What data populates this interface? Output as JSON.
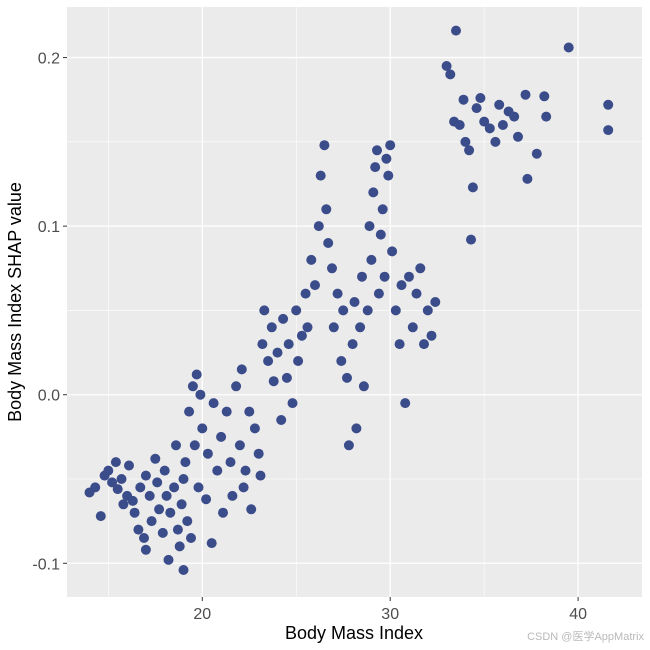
{
  "chart_data": {
    "type": "scatter",
    "title": "",
    "xlabel": "Body Mass Index",
    "ylabel": "Body Mass Index SHAP value",
    "xlim": [
      12.8,
      43.4
    ],
    "ylim": [
      -0.12,
      0.23
    ],
    "xticks": [
      20,
      30,
      40
    ],
    "yticks": [
      -0.1,
      0.0,
      0.1,
      0.2
    ],
    "xtick_labels": [
      "20",
      "30",
      "40"
    ],
    "ytick_labels": [
      "-0.1",
      "0.0",
      "0.1",
      "0.2"
    ],
    "grid": true,
    "colors": {
      "point": "#3b4c8a",
      "panel": "#ebebeb",
      "grid": "#ffffff",
      "tick_text": "#4d4d4d"
    },
    "points": [
      [
        14.0,
        -0.058
      ],
      [
        14.3,
        -0.055
      ],
      [
        14.6,
        -0.072
      ],
      [
        14.8,
        -0.048
      ],
      [
        15.0,
        -0.045
      ],
      [
        15.2,
        -0.052
      ],
      [
        15.4,
        -0.04
      ],
      [
        15.5,
        -0.056
      ],
      [
        15.7,
        -0.05
      ],
      [
        15.8,
        -0.065
      ],
      [
        16.0,
        -0.06
      ],
      [
        16.1,
        -0.042
      ],
      [
        16.3,
        -0.063
      ],
      [
        16.4,
        -0.07
      ],
      [
        16.6,
        -0.08
      ],
      [
        16.7,
        -0.055
      ],
      [
        16.9,
        -0.085
      ],
      [
        17.0,
        -0.048
      ],
      [
        17.0,
        -0.092
      ],
      [
        17.2,
        -0.06
      ],
      [
        17.3,
        -0.075
      ],
      [
        17.5,
        -0.038
      ],
      [
        17.6,
        -0.052
      ],
      [
        17.7,
        -0.068
      ],
      [
        17.9,
        -0.082
      ],
      [
        18.0,
        -0.045
      ],
      [
        18.1,
        -0.06
      ],
      [
        18.2,
        -0.098
      ],
      [
        18.3,
        -0.07
      ],
      [
        18.5,
        -0.055
      ],
      [
        18.6,
        -0.03
      ],
      [
        18.7,
        -0.08
      ],
      [
        18.8,
        -0.09
      ],
      [
        18.9,
        -0.065
      ],
      [
        19.0,
        -0.104
      ],
      [
        19.0,
        -0.05
      ],
      [
        19.1,
        -0.04
      ],
      [
        19.2,
        -0.075
      ],
      [
        19.3,
        -0.01
      ],
      [
        19.4,
        -0.085
      ],
      [
        19.5,
        0.005
      ],
      [
        19.6,
        -0.03
      ],
      [
        19.7,
        0.012
      ],
      [
        19.8,
        -0.055
      ],
      [
        19.9,
        0.0
      ],
      [
        20.0,
        -0.02
      ],
      [
        20.2,
        -0.062
      ],
      [
        20.3,
        -0.035
      ],
      [
        20.5,
        -0.088
      ],
      [
        20.6,
        -0.005
      ],
      [
        20.8,
        -0.045
      ],
      [
        21.0,
        -0.025
      ],
      [
        21.1,
        -0.07
      ],
      [
        21.3,
        -0.01
      ],
      [
        21.5,
        -0.04
      ],
      [
        21.6,
        -0.06
      ],
      [
        21.8,
        0.005
      ],
      [
        22.0,
        -0.03
      ],
      [
        22.1,
        0.015
      ],
      [
        22.2,
        -0.055
      ],
      [
        22.3,
        -0.045
      ],
      [
        22.5,
        -0.01
      ],
      [
        22.6,
        -0.068
      ],
      [
        22.8,
        -0.02
      ],
      [
        23.0,
        -0.035
      ],
      [
        23.1,
        -0.048
      ],
      [
        23.2,
        0.03
      ],
      [
        23.3,
        0.05
      ],
      [
        23.5,
        0.02
      ],
      [
        23.7,
        0.04
      ],
      [
        23.8,
        0.008
      ],
      [
        24.0,
        0.025
      ],
      [
        24.2,
        -0.015
      ],
      [
        24.3,
        0.045
      ],
      [
        24.5,
        0.01
      ],
      [
        24.6,
        0.03
      ],
      [
        24.8,
        -0.005
      ],
      [
        25.0,
        0.05
      ],
      [
        25.1,
        0.02
      ],
      [
        25.3,
        0.035
      ],
      [
        25.5,
        0.06
      ],
      [
        25.6,
        0.04
      ],
      [
        25.8,
        0.08
      ],
      [
        26.0,
        0.065
      ],
      [
        26.2,
        0.1
      ],
      [
        26.3,
        0.13
      ],
      [
        26.5,
        0.148
      ],
      [
        26.6,
        0.11
      ],
      [
        26.7,
        0.09
      ],
      [
        26.9,
        0.075
      ],
      [
        27.0,
        0.04
      ],
      [
        27.2,
        0.06
      ],
      [
        27.4,
        0.02
      ],
      [
        27.5,
        0.05
      ],
      [
        27.7,
        0.01
      ],
      [
        27.8,
        -0.03
      ],
      [
        28.0,
        0.03
      ],
      [
        28.1,
        0.055
      ],
      [
        28.2,
        -0.02
      ],
      [
        28.4,
        0.04
      ],
      [
        28.5,
        0.07
      ],
      [
        28.6,
        0.005
      ],
      [
        28.8,
        0.05
      ],
      [
        28.9,
        0.1
      ],
      [
        29.0,
        0.08
      ],
      [
        29.1,
        0.12
      ],
      [
        29.2,
        0.135
      ],
      [
        29.3,
        0.145
      ],
      [
        29.4,
        0.06
      ],
      [
        29.5,
        0.095
      ],
      [
        29.6,
        0.11
      ],
      [
        29.7,
        0.07
      ],
      [
        29.8,
        0.14
      ],
      [
        29.9,
        0.13
      ],
      [
        30.0,
        0.148
      ],
      [
        30.1,
        0.085
      ],
      [
        30.3,
        0.05
      ],
      [
        30.5,
        0.03
      ],
      [
        30.6,
        0.065
      ],
      [
        30.8,
        -0.005
      ],
      [
        31.0,
        0.07
      ],
      [
        31.2,
        0.04
      ],
      [
        31.4,
        0.06
      ],
      [
        31.6,
        0.075
      ],
      [
        31.8,
        0.03
      ],
      [
        32.0,
        0.05
      ],
      [
        32.2,
        0.035
      ],
      [
        32.4,
        0.055
      ],
      [
        33.0,
        0.195
      ],
      [
        33.2,
        0.19
      ],
      [
        33.4,
        0.162
      ],
      [
        33.5,
        0.216
      ],
      [
        33.7,
        0.16
      ],
      [
        33.9,
        0.175
      ],
      [
        34.0,
        0.15
      ],
      [
        34.2,
        0.145
      ],
      [
        34.3,
        0.092
      ],
      [
        34.4,
        0.123
      ],
      [
        34.6,
        0.17
      ],
      [
        34.8,
        0.176
      ],
      [
        35.0,
        0.162
      ],
      [
        35.3,
        0.158
      ],
      [
        35.6,
        0.15
      ],
      [
        35.8,
        0.172
      ],
      [
        36.0,
        0.16
      ],
      [
        36.3,
        0.168
      ],
      [
        36.6,
        0.165
      ],
      [
        36.8,
        0.153
      ],
      [
        37.2,
        0.178
      ],
      [
        37.3,
        0.128
      ],
      [
        37.8,
        0.143
      ],
      [
        38.2,
        0.177
      ],
      [
        38.3,
        0.165
      ],
      [
        39.5,
        0.206
      ],
      [
        41.6,
        0.172
      ],
      [
        41.6,
        0.157
      ]
    ]
  },
  "watermark": "CSDN @医学AppMatrix"
}
